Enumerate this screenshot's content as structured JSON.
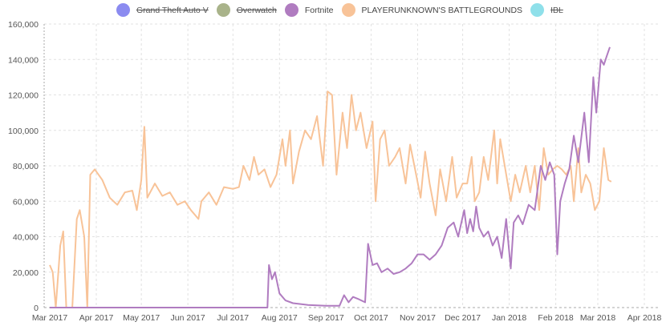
{
  "chart_data": {
    "type": "line",
    "title": "",
    "xlabel": "",
    "ylabel": "",
    "ylim": [
      0,
      160000
    ],
    "xlim": [
      "2017-03-01",
      "2018-04-01"
    ],
    "grid": true,
    "legend_placement": "top",
    "y_ticks": [
      "0",
      "20,000",
      "40,000",
      "60,000",
      "80,000",
      "100,000",
      "120,000",
      "140,000",
      "160,000"
    ],
    "x_ticks": [
      "Mar 2017",
      "Apr 2017",
      "May 2017",
      "Jun 2017",
      "Jul 2017",
      "Aug 2017",
      "Sep 2017",
      "Oct 2017",
      "Nov 2017",
      "Dec 2017",
      "Jan 2018",
      "Feb 2018",
      "Mar 2018",
      "Apr 2018"
    ],
    "series": [
      {
        "name": "Grand Theft Auto V",
        "color": "#8b8bf0",
        "hidden": true,
        "points": []
      },
      {
        "name": "Overwatch",
        "color": "#a9b38a",
        "hidden": true,
        "points": []
      },
      {
        "name": "Fortnite",
        "color": "#b07cc0",
        "hidden": false,
        "points": [
          [
            "2017-03-01",
            0
          ],
          [
            "2017-07-24",
            0
          ],
          [
            "2017-07-25",
            24000
          ],
          [
            "2017-07-27",
            16000
          ],
          [
            "2017-07-29",
            20000
          ],
          [
            "2017-08-01",
            8000
          ],
          [
            "2017-08-05",
            4000
          ],
          [
            "2017-08-10",
            2500
          ],
          [
            "2017-08-20",
            1500
          ],
          [
            "2017-09-01",
            1000
          ],
          [
            "2017-09-10",
            1000
          ],
          [
            "2017-09-13",
            7000
          ],
          [
            "2017-09-16",
            3000
          ],
          [
            "2017-09-19",
            6000
          ],
          [
            "2017-09-22",
            5000
          ],
          [
            "2017-09-27",
            3000
          ],
          [
            "2017-09-29",
            36000
          ],
          [
            "2017-10-02",
            24000
          ],
          [
            "2017-10-05",
            25000
          ],
          [
            "2017-10-08",
            20000
          ],
          [
            "2017-10-12",
            22000
          ],
          [
            "2017-10-16",
            19000
          ],
          [
            "2017-10-20",
            20000
          ],
          [
            "2017-10-24",
            22000
          ],
          [
            "2017-10-28",
            25000
          ],
          [
            "2017-11-01",
            30000
          ],
          [
            "2017-11-05",
            30000
          ],
          [
            "2017-11-09",
            27000
          ],
          [
            "2017-11-13",
            30000
          ],
          [
            "2017-11-17",
            35000
          ],
          [
            "2017-11-21",
            45000
          ],
          [
            "2017-11-25",
            48000
          ],
          [
            "2017-11-28",
            40000
          ],
          [
            "2017-12-02",
            55000
          ],
          [
            "2017-12-04",
            42000
          ],
          [
            "2017-12-06",
            50000
          ],
          [
            "2017-12-08",
            43000
          ],
          [
            "2017-12-10",
            57000
          ],
          [
            "2017-12-12",
            45000
          ],
          [
            "2017-12-15",
            40000
          ],
          [
            "2017-12-18",
            43000
          ],
          [
            "2017-12-21",
            35000
          ],
          [
            "2017-12-24",
            40000
          ],
          [
            "2017-12-27",
            28000
          ],
          [
            "2017-12-30",
            50000
          ],
          [
            "2018-01-02",
            22000
          ],
          [
            "2018-01-04",
            48000
          ],
          [
            "2018-01-07",
            52000
          ],
          [
            "2018-01-10",
            47000
          ],
          [
            "2018-01-14",
            58000
          ],
          [
            "2018-01-18",
            55000
          ],
          [
            "2018-01-22",
            80000
          ],
          [
            "2018-01-25",
            72000
          ],
          [
            "2018-01-28",
            82000
          ],
          [
            "2018-01-31",
            75000
          ],
          [
            "2018-02-02",
            30000
          ],
          [
            "2018-02-04",
            60000
          ],
          [
            "2018-02-07",
            70000
          ],
          [
            "2018-02-10",
            78000
          ],
          [
            "2018-02-13",
            97000
          ],
          [
            "2018-02-16",
            82000
          ],
          [
            "2018-02-20",
            110000
          ],
          [
            "2018-02-23",
            82000
          ],
          [
            "2018-02-26",
            130000
          ],
          [
            "2018-02-28",
            110000
          ],
          [
            "2018-03-03",
            140000
          ],
          [
            "2018-03-05",
            137000
          ],
          [
            "2018-03-07",
            142000
          ],
          [
            "2018-03-09",
            147000
          ]
        ]
      },
      {
        "name": "PLAYERUNKNOWN'S BATTLEGROUNDS",
        "color": "#f8c398",
        "hidden": false,
        "points": [
          [
            "2017-03-01",
            24000
          ],
          [
            "2017-03-03",
            20000
          ],
          [
            "2017-03-05",
            0
          ],
          [
            "2017-03-08",
            35000
          ],
          [
            "2017-03-10",
            43000
          ],
          [
            "2017-03-12",
            0
          ],
          [
            "2017-03-16",
            0
          ],
          [
            "2017-03-19",
            50000
          ],
          [
            "2017-03-21",
            55000
          ],
          [
            "2017-03-24",
            40000
          ],
          [
            "2017-03-26",
            0
          ],
          [
            "2017-03-28",
            75000
          ],
          [
            "2017-03-31",
            78000
          ],
          [
            "2017-04-05",
            72000
          ],
          [
            "2017-04-10",
            62000
          ],
          [
            "2017-04-15",
            58000
          ],
          [
            "2017-04-20",
            65000
          ],
          [
            "2017-04-25",
            66000
          ],
          [
            "2017-04-28",
            55000
          ],
          [
            "2017-05-01",
            72000
          ],
          [
            "2017-05-03",
            102000
          ],
          [
            "2017-05-05",
            62000
          ],
          [
            "2017-05-10",
            70000
          ],
          [
            "2017-05-15",
            63000
          ],
          [
            "2017-05-20",
            65000
          ],
          [
            "2017-05-25",
            58000
          ],
          [
            "2017-05-30",
            60000
          ],
          [
            "2017-06-03",
            55000
          ],
          [
            "2017-06-08",
            50000
          ],
          [
            "2017-06-10",
            60000
          ],
          [
            "2017-06-15",
            65000
          ],
          [
            "2017-06-20",
            58000
          ],
          [
            "2017-06-25",
            68000
          ],
          [
            "2017-07-01",
            67000
          ],
          [
            "2017-07-05",
            68000
          ],
          [
            "2017-07-08",
            80000
          ],
          [
            "2017-07-12",
            72000
          ],
          [
            "2017-07-15",
            85000
          ],
          [
            "2017-07-18",
            75000
          ],
          [
            "2017-07-22",
            78000
          ],
          [
            "2017-07-26",
            68000
          ],
          [
            "2017-07-30",
            75000
          ],
          [
            "2017-08-03",
            95000
          ],
          [
            "2017-08-05",
            80000
          ],
          [
            "2017-08-08",
            100000
          ],
          [
            "2017-08-10",
            70000
          ],
          [
            "2017-08-14",
            88000
          ],
          [
            "2017-08-18",
            100000
          ],
          [
            "2017-08-22",
            95000
          ],
          [
            "2017-08-26",
            108000
          ],
          [
            "2017-08-30",
            80000
          ],
          [
            "2017-09-02",
            122000
          ],
          [
            "2017-09-05",
            120000
          ],
          [
            "2017-09-08",
            75000
          ],
          [
            "2017-09-12",
            110000
          ],
          [
            "2017-09-15",
            90000
          ],
          [
            "2017-09-18",
            120000
          ],
          [
            "2017-09-21",
            100000
          ],
          [
            "2017-09-24",
            110000
          ],
          [
            "2017-09-28",
            90000
          ],
          [
            "2017-10-02",
            105000
          ],
          [
            "2017-10-04",
            60000
          ],
          [
            "2017-10-07",
            95000
          ],
          [
            "2017-10-10",
            100000
          ],
          [
            "2017-10-13",
            80000
          ],
          [
            "2017-10-17",
            85000
          ],
          [
            "2017-10-20",
            90000
          ],
          [
            "2017-10-24",
            70000
          ],
          [
            "2017-10-27",
            92000
          ],
          [
            "2017-10-31",
            75000
          ],
          [
            "2017-11-03",
            62000
          ],
          [
            "2017-11-06",
            88000
          ],
          [
            "2017-11-09",
            70000
          ],
          [
            "2017-11-13",
            52000
          ],
          [
            "2017-11-16",
            78000
          ],
          [
            "2017-11-20",
            60000
          ],
          [
            "2017-11-24",
            85000
          ],
          [
            "2017-11-27",
            62000
          ],
          [
            "2017-12-01",
            70000
          ],
          [
            "2017-12-04",
            70000
          ],
          [
            "2017-12-07",
            85000
          ],
          [
            "2017-12-09",
            60000
          ],
          [
            "2017-12-12",
            65000
          ],
          [
            "2017-12-15",
            85000
          ],
          [
            "2017-12-18",
            72000
          ],
          [
            "2017-12-22",
            100000
          ],
          [
            "2017-12-24",
            70000
          ],
          [
            "2017-12-26",
            95000
          ],
          [
            "2017-12-29",
            80000
          ],
          [
            "2018-01-02",
            60000
          ],
          [
            "2018-01-05",
            75000
          ],
          [
            "2018-01-08",
            65000
          ],
          [
            "2018-01-12",
            80000
          ],
          [
            "2018-01-15",
            65000
          ],
          [
            "2018-01-18",
            80000
          ],
          [
            "2018-01-21",
            55000
          ],
          [
            "2018-01-24",
            90000
          ],
          [
            "2018-01-27",
            75000
          ],
          [
            "2018-01-30",
            78000
          ],
          [
            "2018-02-02",
            80000
          ],
          [
            "2018-02-05",
            78000
          ],
          [
            "2018-02-08",
            75000
          ],
          [
            "2018-02-11",
            80000
          ],
          [
            "2018-02-13",
            60000
          ],
          [
            "2018-02-16",
            90000
          ],
          [
            "2018-02-18",
            65000
          ],
          [
            "2018-02-21",
            75000
          ],
          [
            "2018-02-24",
            70000
          ],
          [
            "2018-02-27",
            55000
          ],
          [
            "2018-03-02",
            60000
          ],
          [
            "2018-03-05",
            90000
          ],
          [
            "2018-03-08",
            72000
          ],
          [
            "2018-03-10",
            71000
          ]
        ]
      },
      {
        "name": "IBL",
        "color": "#8fe0ea",
        "hidden": true,
        "points": []
      }
    ]
  }
}
